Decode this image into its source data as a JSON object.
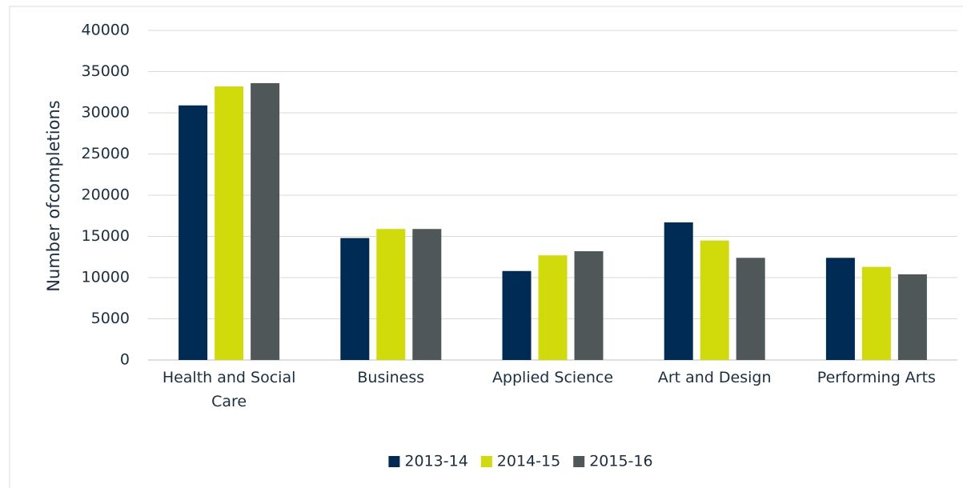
{
  "chart_data": {
    "type": "bar",
    "y_label": "Number ofcompletions",
    "categories": [
      "Health and Social Care",
      "Business",
      "Applied Science",
      "Art and Design",
      "Performing Arts"
    ],
    "series": [
      {
        "name": "2013-14",
        "color": "#002b54",
        "values": [
          30900,
          14800,
          10800,
          16700,
          12400
        ]
      },
      {
        "name": "2014-15",
        "color": "#d1da0b",
        "values": [
          33200,
          15900,
          12700,
          14500,
          11300
        ]
      },
      {
        "name": "2015-16",
        "color": "#4f5759",
        "values": [
          33600,
          15900,
          13200,
          12400,
          10400
        ]
      }
    ],
    "ylim": [
      0,
      40000
    ],
    "yticks": [
      0,
      5000,
      10000,
      15000,
      20000,
      25000,
      30000,
      35000,
      40000
    ],
    "grid": true,
    "legend": "bottom"
  }
}
